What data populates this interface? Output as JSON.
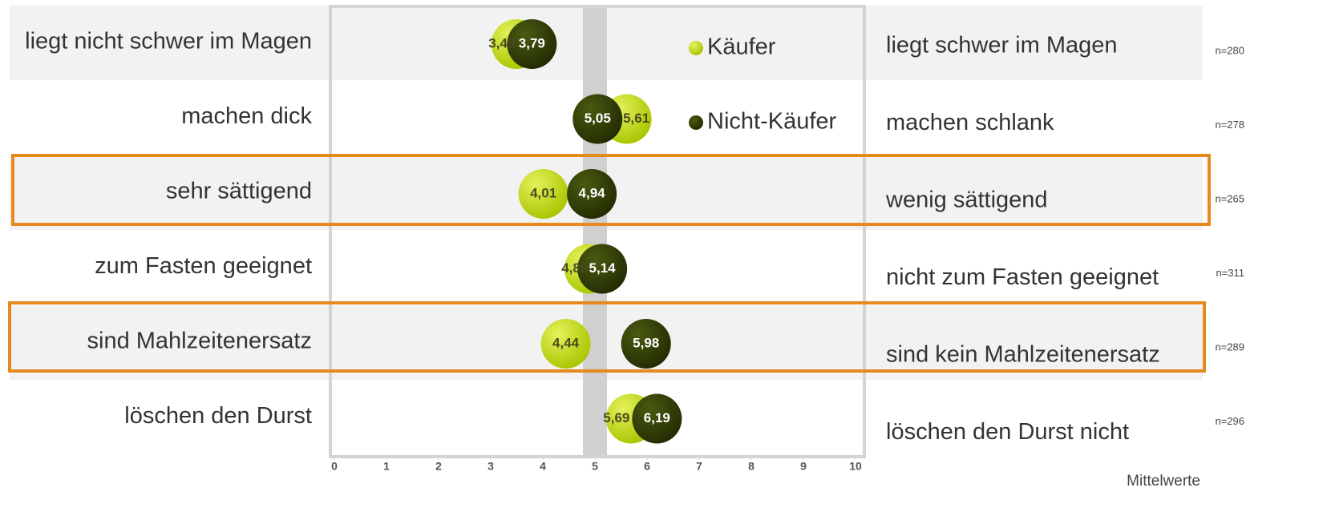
{
  "chart_data": {
    "type": "dot",
    "categories": [
      "liegt nicht schwer im Magen",
      "machen dick",
      "sehr sättigend",
      "zum Fasten geeignet",
      "sind Mahlzeitenersatz",
      "löschen den Durst"
    ],
    "right_labels": [
      "liegt schwer im Magen",
      "machen schlank",
      "wenig sättigend",
      "nicht zum Fasten geeignet",
      "sind kein Mahlzeitenersatz",
      "löschen den Durst nicht"
    ],
    "n_labels": [
      "n=280",
      "n=278",
      "n=265",
      "n=311",
      "n=289",
      "n=296"
    ],
    "series": [
      {
        "name": "Käufer",
        "color": "#b8d400",
        "values": [
          3.49,
          5.61,
          4.01,
          4.89,
          4.44,
          5.69
        ],
        "value_labels": [
          "3,49",
          "5,61",
          "4,01",
          "4,89",
          "4,44",
          "5,69"
        ]
      },
      {
        "name": "Nicht-Käufer",
        "color": "#2f3a06",
        "values": [
          3.79,
          5.05,
          4.94,
          5.14,
          5.98,
          6.19
        ],
        "value_labels": [
          "3,79",
          "5,05",
          "4,94",
          "5,14",
          "5,98",
          "6,19"
        ]
      }
    ],
    "xlim": [
      0,
      10
    ],
    "xticks": [
      0,
      1,
      2,
      3,
      4,
      5,
      6,
      7,
      8,
      9,
      10
    ],
    "footnote": "Mittelwerte"
  }
}
